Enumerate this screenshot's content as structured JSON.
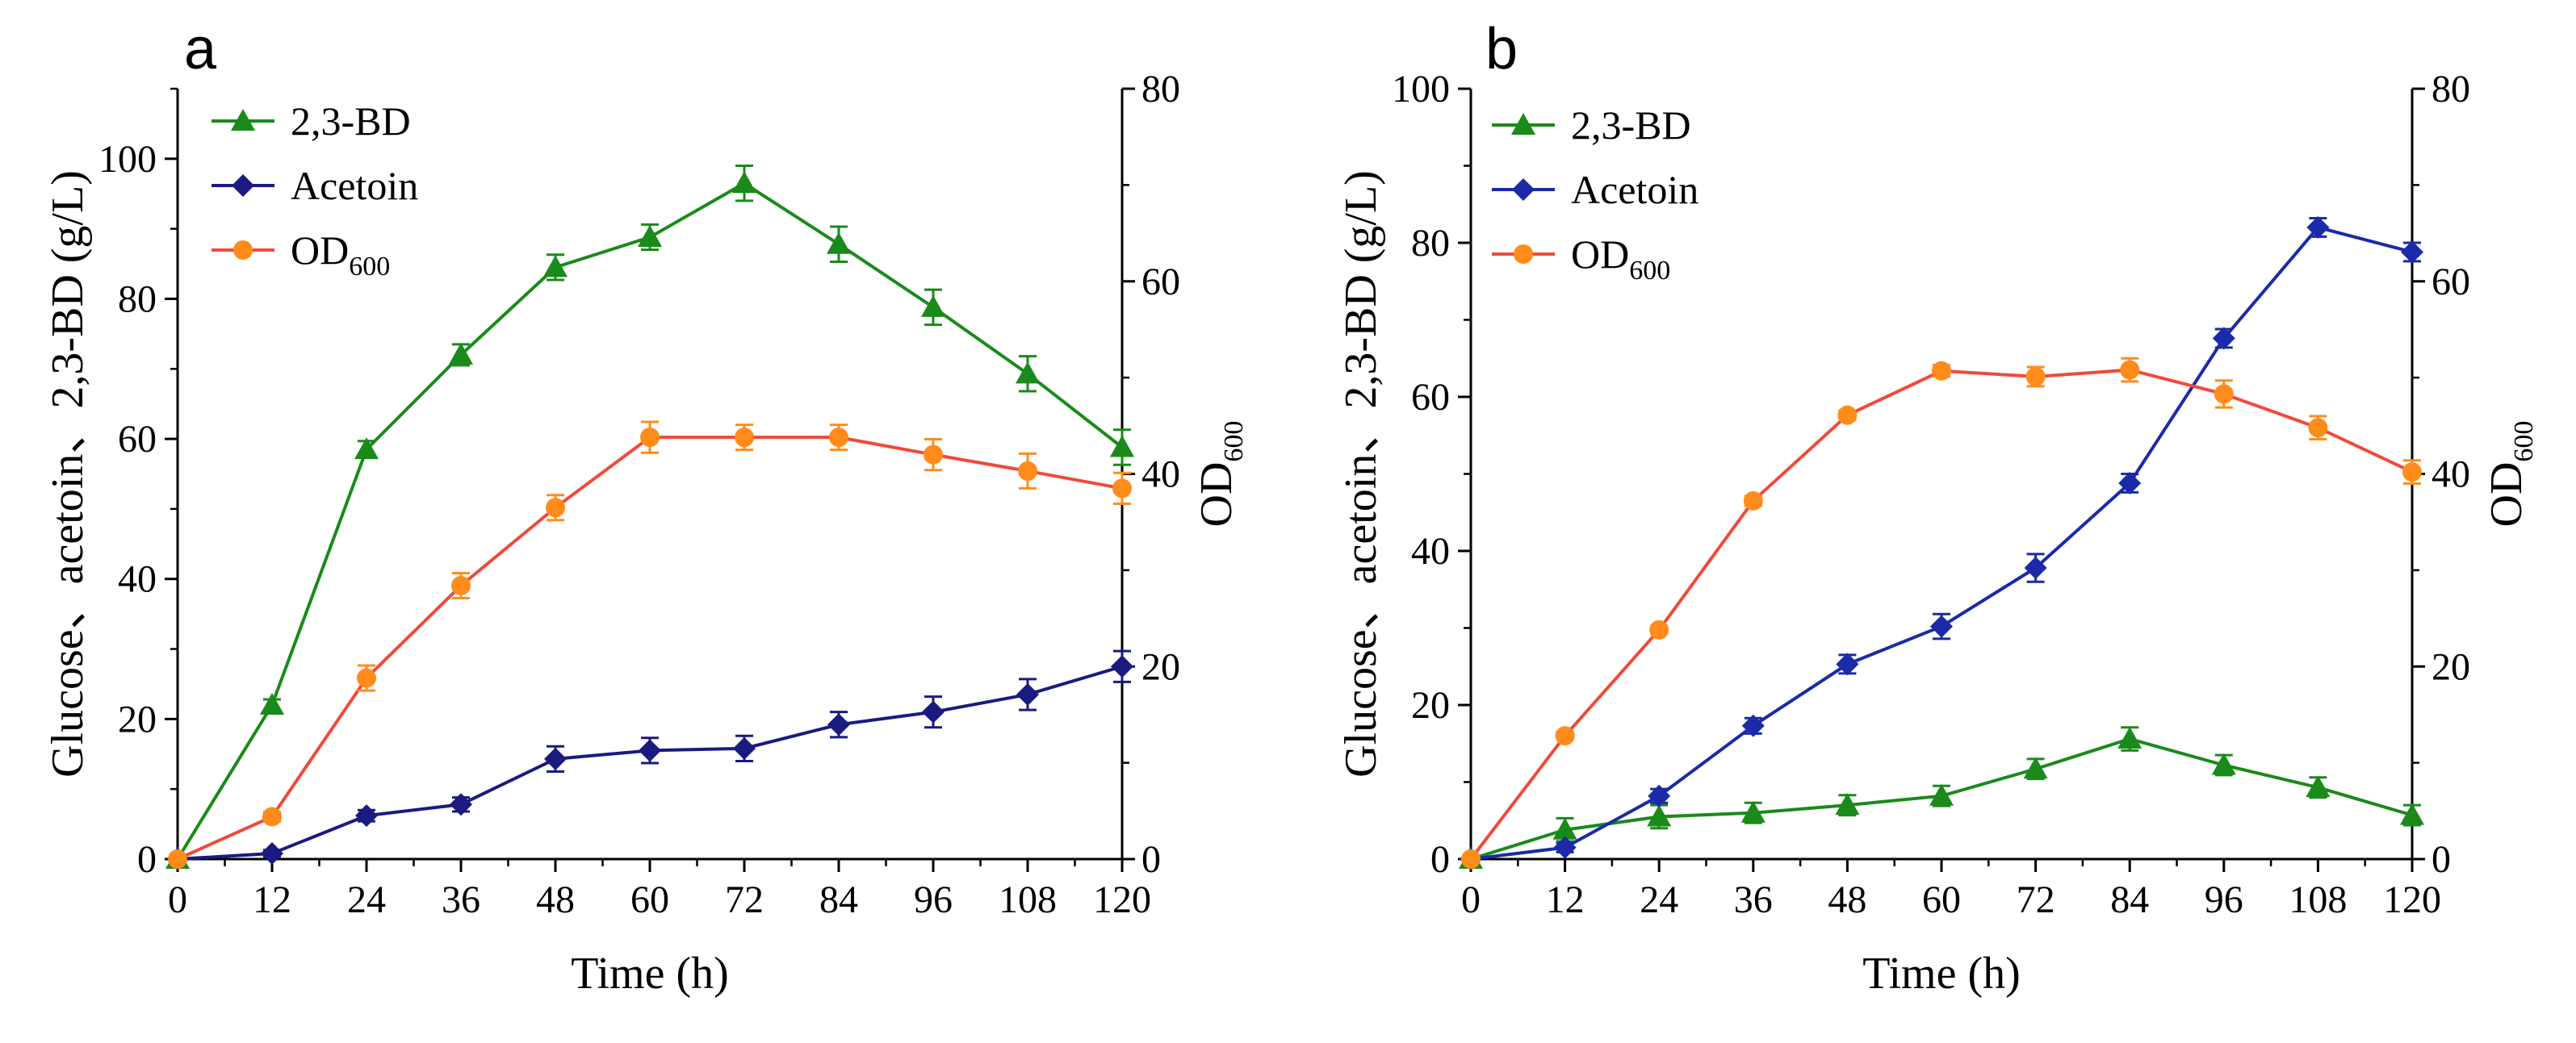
{
  "chart_data": [
    {
      "type": "line",
      "panel_label": "a",
      "xlabel": "Time (h)",
      "ylabel": "Glucose、acetoin、2,3-BD (g/L)",
      "y2label": "OD",
      "y2label_sub": "600",
      "xlim": [
        0,
        120
      ],
      "ylim": [
        0,
        110
      ],
      "y2lim": [
        0,
        80
      ],
      "x_ticks": [
        0,
        12,
        24,
        36,
        48,
        60,
        72,
        84,
        96,
        108,
        120
      ],
      "y_ticks": [
        0,
        20,
        40,
        60,
        80,
        100
      ],
      "y2_ticks": [
        0,
        20,
        40,
        60,
        80
      ],
      "legend_position": "top-left",
      "series": [
        {
          "name": "2,3-BD",
          "name_sub": "",
          "color": "#1a8a1a",
          "marker": "triangle",
          "axis": "left",
          "x": [
            0,
            12,
            24,
            36,
            48,
            60,
            72,
            84,
            96,
            108,
            120
          ],
          "values": [
            0,
            22,
            58.5,
            72,
            84.5,
            88.8,
            96.5,
            87.8,
            78.8,
            69.3,
            58.8
          ],
          "errors": [
            0,
            0.8,
            1.2,
            1.5,
            1.8,
            1.8,
            2.5,
            2.5,
            2.5,
            2.5,
            2.5
          ]
        },
        {
          "name": "Acetoin",
          "name_sub": "",
          "color": "#1a1a80",
          "marker": "diamond",
          "axis": "left",
          "x": [
            0,
            12,
            24,
            36,
            48,
            60,
            72,
            84,
            96,
            108,
            120
          ],
          "values": [
            0,
            0.8,
            6.2,
            7.8,
            14.3,
            15.5,
            15.8,
            19.2,
            21.0,
            23.5,
            27.5
          ],
          "errors": [
            0,
            0.5,
            0.8,
            1.0,
            1.8,
            1.8,
            1.8,
            1.8,
            2.2,
            2.2,
            2.2
          ]
        },
        {
          "name": "OD",
          "name_sub": "600",
          "color": "#f04a3a",
          "marker_color": "#ff8c1a",
          "marker": "circle",
          "axis": "right",
          "x": [
            0,
            12,
            24,
            36,
            48,
            60,
            72,
            84,
            96,
            108,
            120
          ],
          "values": [
            0,
            4.4,
            18.8,
            28.4,
            36.5,
            43.8,
            43.8,
            43.8,
            42.0,
            40.3,
            38.5
          ],
          "errors": [
            0,
            0.5,
            1.3,
            1.3,
            1.3,
            1.6,
            1.3,
            1.3,
            1.6,
            1.8,
            1.6
          ]
        }
      ]
    },
    {
      "type": "line",
      "panel_label": "b",
      "xlabel": "Time (h)",
      "ylabel": "Glucose、acetoin、2,3-BD (g/L)",
      "y2label": "OD",
      "y2label_sub": "600",
      "xlim": [
        0,
        120
      ],
      "ylim": [
        0,
        100
      ],
      "y2lim": [
        0,
        80
      ],
      "x_ticks": [
        0,
        12,
        24,
        36,
        48,
        60,
        72,
        84,
        96,
        108,
        120
      ],
      "y_ticks": [
        0,
        20,
        40,
        60,
        80,
        100
      ],
      "y2_ticks": [
        0,
        20,
        40,
        60,
        80
      ],
      "legend_position": "top-left",
      "series": [
        {
          "name": "2,3-BD",
          "name_sub": "",
          "color": "#1a8a1a",
          "marker": "triangle",
          "axis": "left",
          "x": [
            0,
            12,
            24,
            36,
            48,
            60,
            72,
            84,
            96,
            108,
            120
          ],
          "values": [
            0,
            3.8,
            5.5,
            6.0,
            7.0,
            8.2,
            11.7,
            15.6,
            12.2,
            9.3,
            5.7
          ],
          "errors": [
            0,
            1.5,
            1.5,
            1.3,
            1.3,
            1.3,
            1.3,
            1.5,
            1.3,
            1.3,
            1.3
          ]
        },
        {
          "name": "Acetoin",
          "name_sub": "",
          "color": "#1a2aa8",
          "marker": "diamond",
          "axis": "left",
          "x": [
            0,
            12,
            24,
            36,
            48,
            60,
            72,
            84,
            96,
            108,
            120
          ],
          "values": [
            0,
            1.5,
            8.2,
            17.3,
            25.3,
            30.2,
            37.8,
            48.8,
            67.6,
            82.0,
            78.8
          ],
          "errors": [
            0,
            0.6,
            0.9,
            1.0,
            1.2,
            1.6,
            1.8,
            1.2,
            1.2,
            1.2,
            1.2
          ]
        },
        {
          "name": "OD",
          "name_sub": "600",
          "color": "#f04a3a",
          "marker_color": "#ff8c1a",
          "marker": "circle",
          "axis": "right",
          "x": [
            0,
            12,
            24,
            36,
            48,
            60,
            72,
            84,
            96,
            108,
            120
          ],
          "values": [
            0,
            12.8,
            23.8,
            37.2,
            46.1,
            50.7,
            50.1,
            50.8,
            48.3,
            44.8,
            40.2
          ],
          "errors": [
            0,
            0.4,
            0.4,
            0.5,
            0.5,
            0.6,
            1.0,
            1.2,
            1.4,
            1.2,
            1.2
          ]
        }
      ]
    }
  ]
}
